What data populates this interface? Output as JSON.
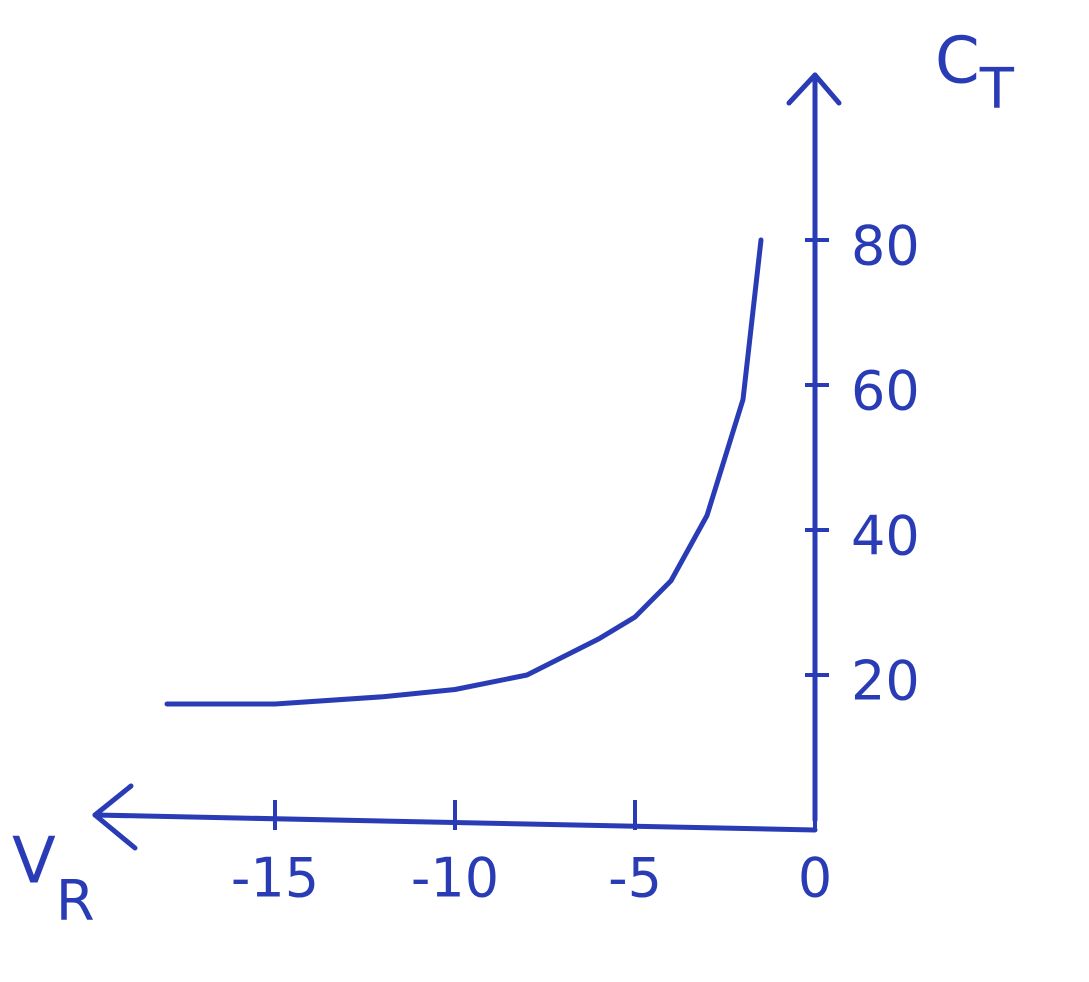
{
  "chart_data": {
    "type": "line",
    "ylabel": {
      "main": "C",
      "sub": "T"
    },
    "xlabel": {
      "main": "V",
      "sub": "R"
    },
    "x": [
      -18,
      -15,
      -12,
      -10,
      -8,
      -6,
      -5,
      -4,
      -3,
      -2,
      -1.5
    ],
    "series": [
      {
        "color": "#2a3cb5",
        "values": [
          16,
          16,
          17,
          18,
          20,
          25,
          28,
          33,
          42,
          58,
          80
        ]
      }
    ],
    "xlim": [
      -20,
      0
    ],
    "xticks": [
      -15,
      -10,
      -5,
      0
    ],
    "ylim": [
      0,
      100
    ],
    "yticks": [
      20,
      40,
      60,
      80
    ],
    "grid": false
  }
}
